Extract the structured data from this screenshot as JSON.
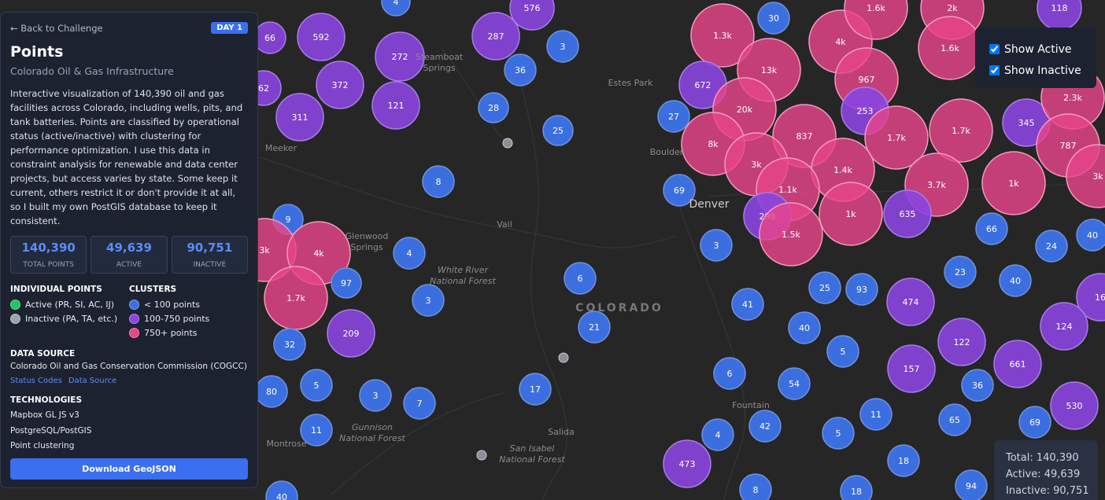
{
  "panel": {
    "back_link": "Back to Challenge",
    "badge": "DAY 1",
    "title": "Points",
    "subtitle": "Colorado Oil & Gas Infrastructure",
    "description": "Interactive visualization of 140,390 oil and gas facilities across Colorado, including wells, pits, and tank batteries. Points are classified by operational status (active/inactive) with clustering for performance optimization. I use this data in constraint analysis for renewable and data center projects, but access varies by state. Some keep it current, others restrict it or don't provide it at all, so I built my own PostGIS database to keep it consistent.",
    "stats": [
      {
        "value": "140,390",
        "label": "TOTAL POINTS"
      },
      {
        "value": "49,639",
        "label": "ACTIVE"
      },
      {
        "value": "90,751",
        "label": "INACTIVE"
      }
    ],
    "legend": {
      "individual": {
        "heading": "INDIVIDUAL POINTS",
        "items": [
          "Active (PR, SI, AC, IJ)",
          "Inactive (PA, TA, etc.)"
        ]
      },
      "clusters": {
        "heading": "CLUSTERS",
        "items": [
          "< 100 points",
          "100-750 points",
          "750+ points"
        ]
      }
    },
    "data_source": {
      "heading": "DATA SOURCE",
      "text": "Colorado Oil and Gas Conservation Commission (COGCC)",
      "links": [
        "Status Codes",
        "Data Source"
      ]
    },
    "technologies": {
      "heading": "TECHNOLOGIES",
      "items": [
        "Mapbox GL JS v3",
        "PostgreSQL/PostGIS",
        "Point clustering"
      ]
    },
    "download": "Download GeoJSON"
  },
  "controls": [
    "Show Active",
    "Show Inactive"
  ],
  "summary": [
    "Total: 140,390",
    "Active: 49,639",
    "Inactive: 90,751"
  ],
  "places": [
    "Steamboat Springs",
    "Estes Park",
    "Boulder",
    "Denver",
    "Meeker",
    "Glenwood Springs",
    "Vail",
    "White River National Forest",
    "COLORADO",
    "Gunnison National Forest",
    "Montrose",
    "Salida",
    "San Isabel National Forest",
    "Fountain"
  ],
  "clusters": [
    "592",
    "66",
    "272",
    "287",
    "576",
    "4",
    "3",
    "36",
    "372",
    "121",
    "311",
    "62",
    "28",
    "25",
    "8",
    "9",
    "3k",
    "4k",
    "97",
    "1.7k",
    "4",
    "3",
    "6",
    "209",
    "32",
    "21",
    "80",
    "5",
    "3",
    "7",
    "17",
    "11",
    "473",
    "40",
    "1.3k",
    "30",
    "672",
    "13k",
    "4k",
    "1.6k",
    "2k",
    "118",
    "1.6k",
    "967",
    "253",
    "27",
    "20k",
    "8k",
    "837",
    "1.7k",
    "1.7k",
    "345",
    "2.3k",
    "787",
    "3k",
    "1.4k",
    "3.7k",
    "1k",
    "3k",
    "69",
    "1.1k",
    "298",
    "1.5k",
    "1k",
    "635",
    "66",
    "24",
    "40",
    "3",
    "23",
    "40",
    "25",
    "93",
    "474",
    "16",
    "41",
    "40",
    "124",
    "122",
    "5",
    "157",
    "661",
    "6",
    "54",
    "36",
    "530",
    "11",
    "42",
    "4",
    "5",
    "65",
    "69",
    "18",
    "94",
    "8",
    "18"
  ]
}
